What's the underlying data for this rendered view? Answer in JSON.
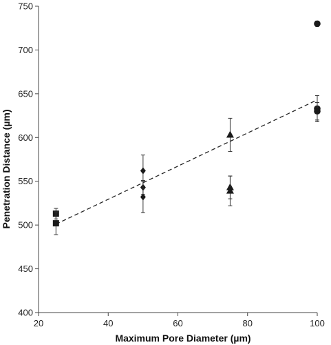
{
  "chart_data": {
    "type": "scatter",
    "title": "",
    "xlabel": "Maximum Pore Diameter (µm)",
    "ylabel": "Penetration Distance (µm)",
    "xlim": [
      20,
      100
    ],
    "ylim": [
      400,
      750
    ],
    "xticks": [
      20,
      40,
      60,
      80,
      100
    ],
    "yticks": [
      400,
      450,
      500,
      550,
      600,
      650,
      700,
      750
    ],
    "grid": false,
    "legend": "none",
    "marker_color": "#1a1a1a",
    "series": [
      {
        "marker": "square",
        "points": [
          {
            "x": 25,
            "y": 513,
            "err": 6
          },
          {
            "x": 25,
            "y": 502,
            "err": 13
          }
        ]
      },
      {
        "marker": "diamond",
        "points": [
          {
            "x": 50,
            "y": 562,
            "err": 18
          },
          {
            "x": 50,
            "y": 543,
            "err": 8
          },
          {
            "x": 50,
            "y": 532,
            "err": 18
          }
        ]
      },
      {
        "marker": "triangle",
        "points": [
          {
            "x": 75,
            "y": 603,
            "err": 19
          },
          {
            "x": 75,
            "y": 543,
            "err": 13
          },
          {
            "x": 75,
            "y": 539,
            "err": 17
          }
        ]
      },
      {
        "marker": "circle",
        "points": [
          {
            "x": 100,
            "y": 730,
            "err": 3
          },
          {
            "x": 100,
            "y": 633,
            "err": 15
          },
          {
            "x": 100,
            "y": 630,
            "err": 10
          }
        ]
      }
    ],
    "trendline": {
      "style": "dashed",
      "x": [
        25,
        100
      ],
      "y": [
        501,
        643
      ]
    }
  }
}
